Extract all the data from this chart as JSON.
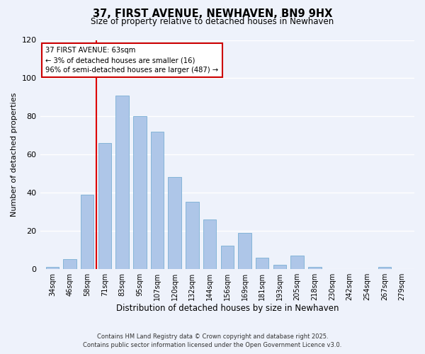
{
  "title": "37, FIRST AVENUE, NEWHAVEN, BN9 9HX",
  "subtitle": "Size of property relative to detached houses in Newhaven",
  "xlabel": "Distribution of detached houses by size in Newhaven",
  "ylabel": "Number of detached properties",
  "bar_labels": [
    "34sqm",
    "46sqm",
    "58sqm",
    "71sqm",
    "83sqm",
    "95sqm",
    "107sqm",
    "120sqm",
    "132sqm",
    "144sqm",
    "156sqm",
    "169sqm",
    "181sqm",
    "193sqm",
    "205sqm",
    "218sqm",
    "230sqm",
    "242sqm",
    "254sqm",
    "267sqm",
    "279sqm"
  ],
  "bar_values": [
    1,
    5,
    39,
    66,
    91,
    80,
    72,
    48,
    35,
    26,
    12,
    19,
    6,
    2,
    7,
    1,
    0,
    0,
    0,
    1,
    0
  ],
  "bar_color": "#aec6e8",
  "bar_edge_color": "#7aafd4",
  "annotation_text_line1": "37 FIRST AVENUE: 63sqm",
  "annotation_text_line2": "← 3% of detached houses are smaller (16)",
  "annotation_text_line3": "96% of semi-detached houses are larger (487) →",
  "red_line_color": "#dd0000",
  "annotation_box_color": "#ffffff",
  "annotation_box_edge": "#cc0000",
  "ylim": [
    0,
    120
  ],
  "background_color": "#eef2fb",
  "grid_color": "#ffffff",
  "footer_line1": "Contains HM Land Registry data © Crown copyright and database right 2025.",
  "footer_line2": "Contains public sector information licensed under the Open Government Licence v3.0."
}
